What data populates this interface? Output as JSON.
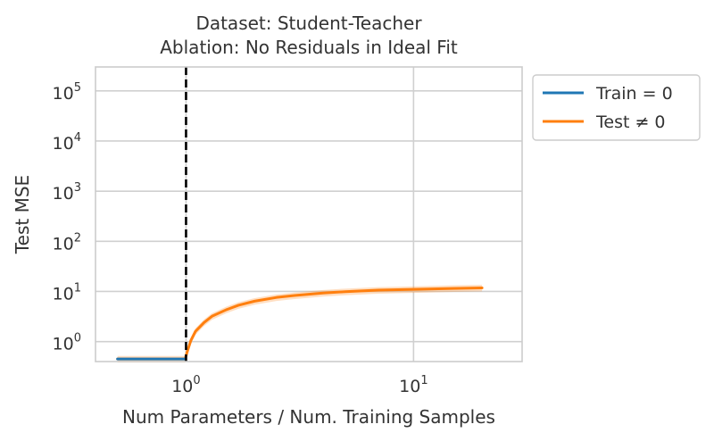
{
  "chart_data": {
    "type": "line",
    "title": "Dataset: Student-Teacher",
    "subtitle": "Ablation: No Residuals in Ideal Fit",
    "xlabel": "Num Parameters / Num. Training Samples",
    "ylabel": "Test MSE",
    "xscale": "log",
    "yscale": "log",
    "xlim": [
      0.4,
      30
    ],
    "ylim": [
      0.4,
      300000
    ],
    "x_ticks": [
      {
        "base": "10",
        "exp": "0",
        "value": 1
      },
      {
        "base": "10",
        "exp": "1",
        "value": 10
      }
    ],
    "y_ticks": [
      {
        "base": "10",
        "exp": "0",
        "value": 1
      },
      {
        "base": "10",
        "exp": "1",
        "value": 10
      },
      {
        "base": "10",
        "exp": "2",
        "value": 100
      },
      {
        "base": "10",
        "exp": "3",
        "value": 1000
      },
      {
        "base": "10",
        "exp": "4",
        "value": 10000
      },
      {
        "base": "10",
        "exp": "5",
        "value": 100000
      }
    ],
    "grid": true,
    "legend_position": "outside-right-top",
    "vline": {
      "x": 1.0,
      "style": "dashed",
      "color": "#000000"
    },
    "series": [
      {
        "name": "Train = 0",
        "color": "#1f77b4",
        "x": [
          0.5,
          0.6,
          0.7,
          0.8,
          0.9,
          0.99
        ],
        "y": [
          0.45,
          0.45,
          0.45,
          0.45,
          0.45,
          0.45
        ]
      },
      {
        "name": "Test ≠ 0",
        "color": "#ff7f0e",
        "x": [
          0.5,
          0.6,
          0.7,
          0.8,
          0.9,
          0.99,
          1.02,
          1.05,
          1.1,
          1.2,
          1.3,
          1.5,
          1.7,
          2.0,
          2.5,
          3.0,
          4.0,
          5.0,
          7.0,
          10.0,
          15.0,
          20.0
        ],
        "y": [
          0.45,
          0.45,
          0.45,
          0.45,
          0.45,
          0.45,
          0.7,
          1.05,
          1.6,
          2.4,
          3.2,
          4.3,
          5.3,
          6.4,
          7.6,
          8.3,
          9.3,
          9.9,
          10.6,
          11.0,
          11.5,
          11.8
        ],
        "band": {
          "lower_factor": 0.85,
          "upper_factor": 1.15
        }
      }
    ]
  }
}
